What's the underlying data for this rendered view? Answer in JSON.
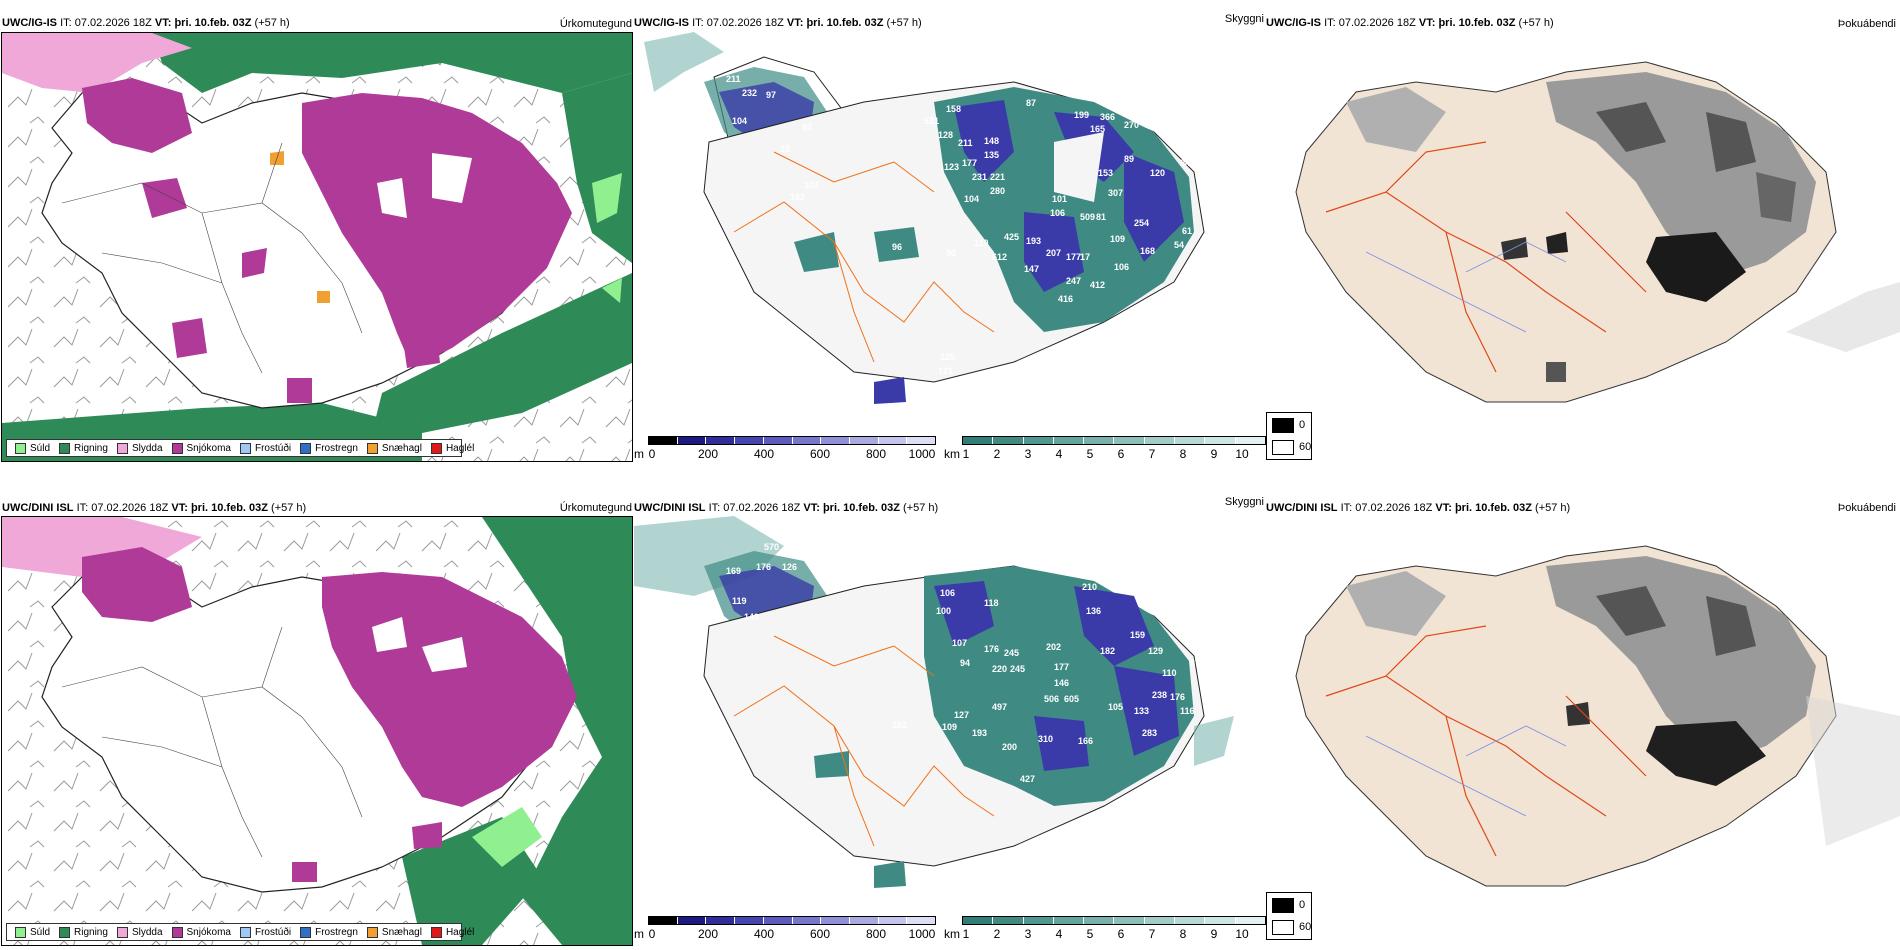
{
  "rows": [
    {
      "model": "UWC/IG-IS",
      "it_label": "IT:",
      "init_time": "07.02.2026 18Z",
      "vt_label": "VT:",
      "valid_time": "þri. 10.feb. 03Z",
      "lead": "(+57 h)",
      "precip_title": "Úrkomutegund",
      "vis_title": "Skyggni",
      "cloud_title": "Þokuábendi",
      "snow_labels": [
        "211",
        "232",
        "97",
        "104",
        "92",
        "33",
        "102",
        "162",
        "158",
        "531",
        "128",
        "211",
        "148",
        "177",
        "123",
        "135",
        "231",
        "221",
        "280",
        "104",
        "87",
        "199",
        "366",
        "165",
        "270",
        "89",
        "94",
        "153",
        "120",
        "101",
        "106",
        "307",
        "509",
        "81",
        "254",
        "61",
        "109",
        "168",
        "54",
        "106",
        "147",
        "207",
        "177",
        "17",
        "247",
        "416",
        "412",
        "96",
        "90",
        "110",
        "425",
        "612",
        "193",
        "125",
        "121"
      ]
    },
    {
      "model": "UWC/DINI ISL",
      "it_label": "IT:",
      "init_time": "07.02.2026 18Z",
      "vt_label": "VT:",
      "valid_time": "þri. 10.feb. 03Z",
      "lead": "(+57 h)",
      "precip_title": "Úrkomutegund",
      "vis_title": "Skyggni",
      "cloud_title": "Þokuábendi",
      "snow_labels": [
        "570",
        "169",
        "176",
        "126",
        "119",
        "149",
        "106",
        "100",
        "118",
        "107",
        "94",
        "176",
        "245",
        "220",
        "245",
        "218",
        "210",
        "136",
        "202",
        "177",
        "146",
        "506",
        "605",
        "182",
        "159",
        "129",
        "110",
        "115",
        "87",
        "56",
        "238",
        "176",
        "116",
        "105",
        "133",
        "283",
        "166",
        "310",
        "200",
        "193",
        "127",
        "109",
        "102",
        "497",
        "427"
      ]
    }
  ],
  "precip_legend": [
    {
      "label": "Súld",
      "color": "#90f090"
    },
    {
      "label": "Rigning",
      "color": "#2e8b57"
    },
    {
      "label": "Slydda",
      "color": "#f0a8d8"
    },
    {
      "label": "Snjókoma",
      "color": "#b03a98"
    },
    {
      "label": "Frostúði",
      "color": "#9ec8f5"
    },
    {
      "label": "Frostregn",
      "color": "#2f6fc4"
    },
    {
      "label": "Snæhagl",
      "color": "#f0a030"
    },
    {
      "label": "Haglél",
      "color": "#e01818"
    }
  ],
  "snow_bar": {
    "unit": "m",
    "ticks": [
      "0",
      "200",
      "400",
      "600",
      "800",
      "1000"
    ],
    "colors": [
      "#000000",
      "#1a1a80",
      "#2e2e9a",
      "#4545b0",
      "#5c5cc0",
      "#7676cc",
      "#9090d8",
      "#aaaae2",
      "#c4c4ec",
      "#deddf6"
    ]
  },
  "vis_bar": {
    "unit": "km",
    "ticks": [
      "1",
      "2",
      "3",
      "4",
      "5",
      "6",
      "7",
      "8",
      "9",
      "10"
    ],
    "colors": [
      "#2f7f77",
      "#3f8b84",
      "#4f9791",
      "#62a49e",
      "#76b1ac",
      "#8bbfba",
      "#a1ccc8",
      "#b6d9d6",
      "#cce6e3",
      "#e2f2f0"
    ]
  },
  "cloud_key": {
    "black_label": "0",
    "white_label": "60"
  },
  "style": {
    "snow": "#b03a98",
    "rain": "#2e8b57",
    "drizzle": "#90f090",
    "sleet": "#f0a8d8",
    "sleet_pellets": "#f0a030",
    "vis_teal": "#3f8b84",
    "land": "#f2e4d4",
    "road": "#f07018",
    "river": "#7d8ee8",
    "purple_label_bg": "#4040c0"
  }
}
